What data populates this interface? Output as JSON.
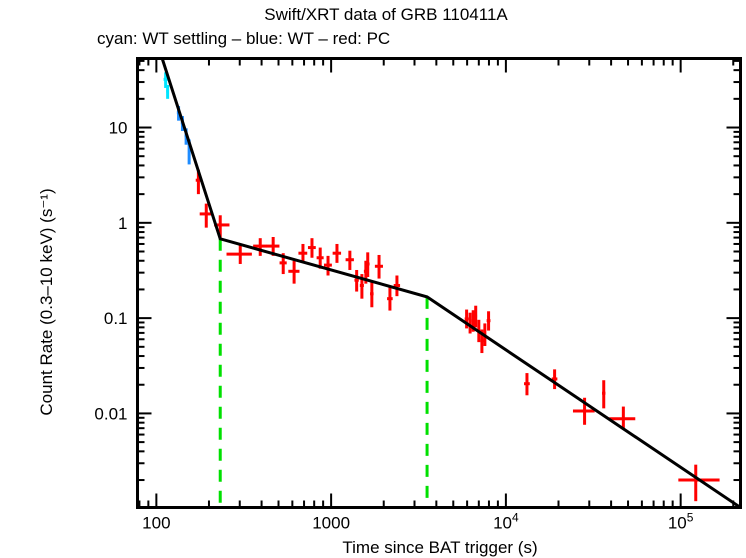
{
  "chart_data": {
    "type": "scatter",
    "title": "Swift/XRT data of GRB 110411A",
    "subtitle": "cyan: WT settling – blue: WT – red: PC",
    "xlabel": "Time since BAT trigger (s)",
    "ylabel": "Count Rate (0.3–10 keV) (s⁻¹)",
    "xscale": "log",
    "yscale": "log",
    "xlim": [
      78,
      220000
    ],
    "ylim": [
      0.00103,
      53
    ],
    "grid": false,
    "x_ticks": [
      {
        "value": 100,
        "label": "100"
      },
      {
        "value": 1000,
        "label": "1000"
      },
      {
        "value": 10000,
        "label": "10⁴"
      },
      {
        "value": 100000,
        "label": "10⁵"
      }
    ],
    "y_ticks": [
      {
        "value": 10,
        "label": "10"
      },
      {
        "value": 1,
        "label": "1"
      },
      {
        "value": 0.1,
        "label": "0.1"
      },
      {
        "value": 0.01,
        "label": "0.01"
      }
    ],
    "series": [
      {
        "name": "WT settling",
        "color": "#00e5ff",
        "points": [
          {
            "t": 113,
            "terr": [
              3,
              3
            ],
            "r": 32,
            "rerr": [
              6,
              6
            ]
          },
          {
            "t": 116,
            "terr": [
              2,
              2
            ],
            "r": 24,
            "rerr": [
              4,
              4
            ]
          }
        ]
      },
      {
        "name": "WT",
        "color": "#1e8cff",
        "points": [
          {
            "t": 134,
            "terr": [
              3,
              3
            ],
            "r": 14.3,
            "rerr": [
              2.5,
              2.5
            ]
          },
          {
            "t": 141,
            "terr": [
              3,
              3
            ],
            "r": 11.2,
            "rerr": [
              2.0,
              2.0
            ]
          },
          {
            "t": 148,
            "terr": [
              3,
              3
            ],
            "r": 8.2,
            "rerr": [
              1.6,
              1.6
            ]
          },
          {
            "t": 154,
            "terr": [
              2,
              2
            ],
            "r": 5.7,
            "rerr": [
              1.6,
              1.8
            ]
          }
        ]
      },
      {
        "name": "PC",
        "color": "#ff0000",
        "points": [
          {
            "t": 174,
            "terr": [
              6,
              6
            ],
            "r": 2.8,
            "rerr": [
              0.8,
              0.8
            ]
          },
          {
            "t": 193,
            "terr": [
              16,
              16
            ],
            "r": 1.24,
            "rerr": [
              0.35,
              0.35
            ]
          },
          {
            "t": 232,
            "terr": [
              18,
              30
            ],
            "r": 0.95,
            "rerr": [
              0.25,
              0.25
            ]
          },
          {
            "t": 302,
            "terr": [
              50,
              50
            ],
            "r": 0.47,
            "rerr": [
              0.1,
              0.12
            ]
          },
          {
            "t": 393,
            "terr": [
              35,
              35
            ],
            "r": 0.57,
            "rerr": [
              0.12,
              0.12
            ]
          },
          {
            "t": 466,
            "terr": [
              40,
              40
            ],
            "r": 0.57,
            "rerr": [
              0.12,
              0.14
            ]
          },
          {
            "t": 532,
            "terr": [
              25,
              25
            ],
            "r": 0.38,
            "rerr": [
              0.09,
              0.1
            ]
          },
          {
            "t": 614,
            "terr": [
              45,
              45
            ],
            "r": 0.31,
            "rerr": [
              0.08,
              0.09
            ]
          },
          {
            "t": 690,
            "terr": [
              40,
              40
            ],
            "r": 0.48,
            "rerr": [
              0.1,
              0.12
            ]
          },
          {
            "t": 777,
            "terr": [
              40,
              40
            ],
            "r": 0.55,
            "rerr": [
              0.12,
              0.14
            ]
          },
          {
            "t": 866,
            "terr": [
              40,
              40
            ],
            "r": 0.43,
            "rerr": [
              0.1,
              0.12
            ]
          },
          {
            "t": 960,
            "terr": [
              50,
              50
            ],
            "r": 0.36,
            "rerr": [
              0.08,
              0.09
            ]
          },
          {
            "t": 1080,
            "terr": [
              60,
              60
            ],
            "r": 0.48,
            "rerr": [
              0.1,
              0.12
            ]
          },
          {
            "t": 1280,
            "terr": [
              70,
              70
            ],
            "r": 0.41,
            "rerr": [
              0.09,
              0.1
            ]
          },
          {
            "t": 1400,
            "terr": [
              40,
              40
            ],
            "r": 0.25,
            "rerr": [
              0.06,
              0.07
            ]
          },
          {
            "t": 1500,
            "terr": [
              40,
              40
            ],
            "r": 0.22,
            "rerr": [
              0.06,
              0.07
            ]
          },
          {
            "t": 1580,
            "terr": [
              40,
              40
            ],
            "r": 0.31,
            "rerr": [
              0.08,
              0.09
            ]
          },
          {
            "t": 1620,
            "terr": [
              40,
              40
            ],
            "r": 0.37,
            "rerr": [
              0.1,
              0.12
            ]
          },
          {
            "t": 1710,
            "terr": [
              40,
              40
            ],
            "r": 0.18,
            "rerr": [
              0.05,
              0.06
            ]
          },
          {
            "t": 1880,
            "terr": [
              100,
              100
            ],
            "r": 0.35,
            "rerr": [
              0.09,
              0.11
            ]
          },
          {
            "t": 2170,
            "terr": [
              80,
              80
            ],
            "r": 0.16,
            "rerr": [
              0.04,
              0.05
            ]
          },
          {
            "t": 2380,
            "terr": [
              100,
              100
            ],
            "r": 0.22,
            "rerr": [
              0.05,
              0.06
            ]
          },
          {
            "t": 5960,
            "terr": [
              150,
              150
            ],
            "r": 0.098,
            "rerr": [
              0.02,
              0.025
            ]
          },
          {
            "t": 6240,
            "terr": [
              120,
              120
            ],
            "r": 0.089,
            "rerr": [
              0.02,
              0.025
            ]
          },
          {
            "t": 6500,
            "terr": [
              120,
              120
            ],
            "r": 0.094,
            "rerr": [
              0.022,
              0.027
            ]
          },
          {
            "t": 6720,
            "terr": [
              120,
              120
            ],
            "r": 0.105,
            "rerr": [
              0.025,
              0.03
            ]
          },
          {
            "t": 7000,
            "terr": [
              120,
              120
            ],
            "r": 0.074,
            "rerr": [
              0.018,
              0.022
            ]
          },
          {
            "t": 7290,
            "terr": [
              150,
              150
            ],
            "r": 0.058,
            "rerr": [
              0.015,
              0.018
            ]
          },
          {
            "t": 7580,
            "terr": [
              120,
              120
            ],
            "r": 0.068,
            "rerr": [
              0.017,
              0.02
            ]
          },
          {
            "t": 7960,
            "terr": [
              200,
              200
            ],
            "r": 0.094,
            "rerr": [
              0.02,
              0.024
            ]
          },
          {
            "t": 13200,
            "terr": [
              500,
              500
            ],
            "r": 0.0205,
            "rerr": [
              0.005,
              0.006
            ]
          },
          {
            "t": 19000,
            "terr": [
              700,
              700
            ],
            "r": 0.023,
            "rerr": [
              0.005,
              0.006
            ]
          },
          {
            "t": 28200,
            "terr": [
              4000,
              4000
            ],
            "r": 0.0106,
            "rerr": [
              0.003,
              0.004
            ]
          },
          {
            "t": 36300,
            "terr": [
              800,
              800
            ],
            "r": 0.0163,
            "rerr": [
              0.005,
              0.006
            ]
          },
          {
            "t": 47000,
            "terr": [
              8000,
              8000
            ],
            "r": 0.0088,
            "rerr": [
              0.002,
              0.003
            ]
          },
          {
            "t": 122000,
            "terr": [
              25000,
              45000
            ],
            "r": 0.002,
            "rerr": [
              0.0008,
              0.0009
            ]
          }
        ]
      }
    ],
    "model": {
      "name": "broken power-law fit",
      "color": "#000000",
      "vertices": [
        {
          "t": 108,
          "r": 53
        },
        {
          "t": 232,
          "r": 0.68
        },
        {
          "t": 3540,
          "r": 0.167
        },
        {
          "t": 220000,
          "r": 0.00103
        }
      ]
    },
    "breaks": {
      "color": "#00e000",
      "times": [
        232,
        3540
      ]
    }
  }
}
